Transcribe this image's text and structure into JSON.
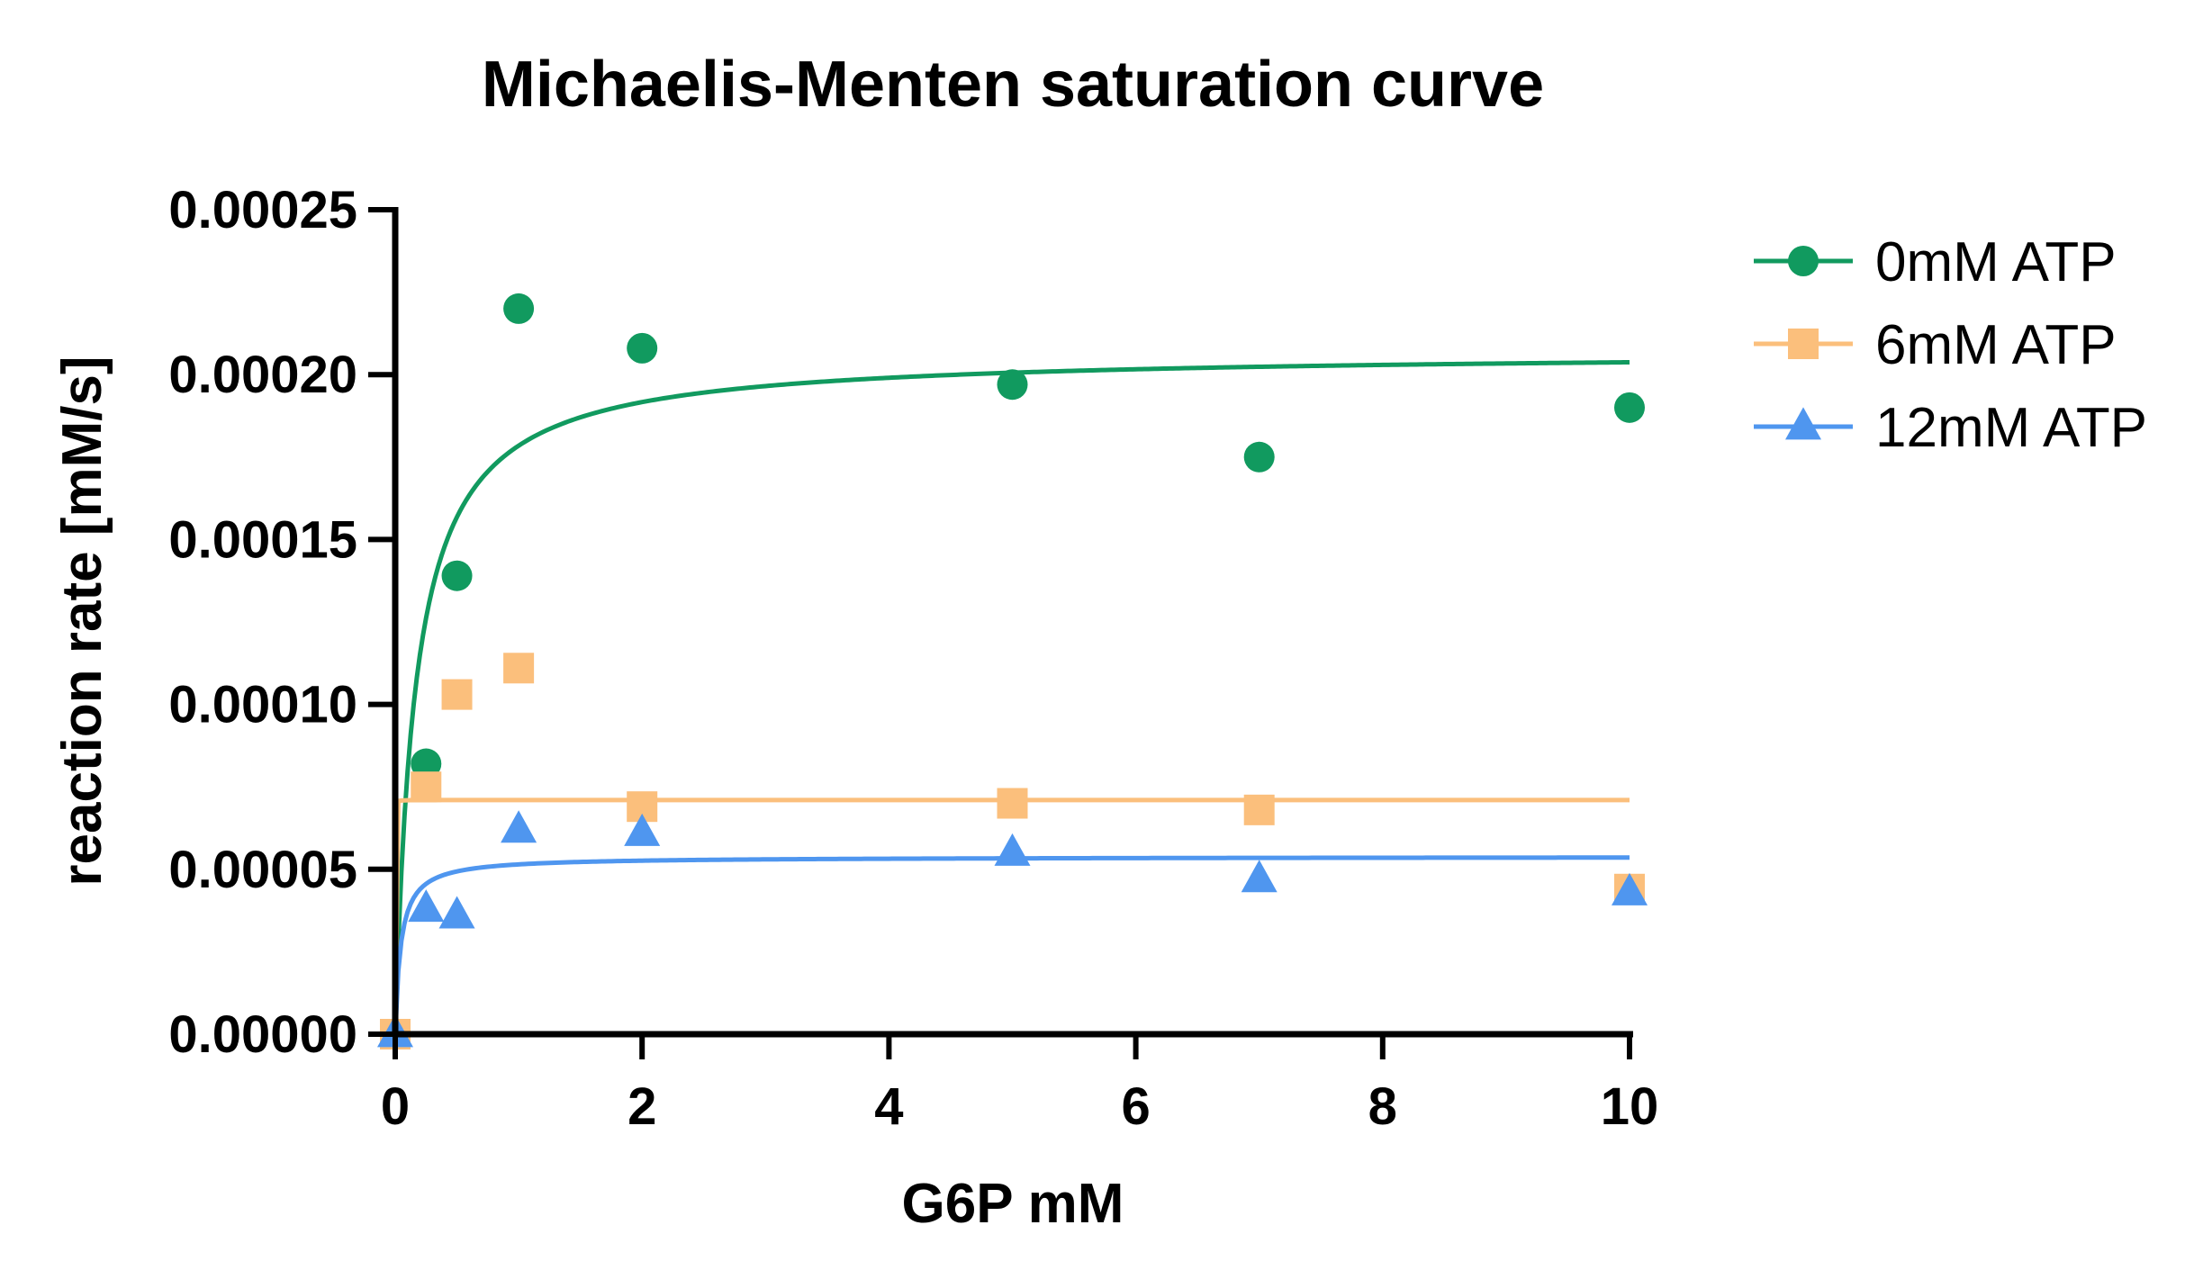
{
  "chart_data": {
    "type": "scatter",
    "title": "Michaelis-Menten saturation curve",
    "xlabel": "G6P mM",
    "ylabel": "reaction rate [mM/s]",
    "xlim": [
      0,
      10
    ],
    "ylim": [
      0,
      0.00025
    ],
    "x_ticks": [
      0,
      2,
      4,
      6,
      8,
      10
    ],
    "x_tick_labels": [
      "0",
      "2",
      "4",
      "6",
      "8",
      "10"
    ],
    "y_ticks": [
      0,
      5e-05,
      0.0001,
      0.00015,
      0.0002,
      0.00025
    ],
    "y_tick_labels": [
      "0.00000",
      "0.00005",
      "0.00010",
      "0.00015",
      "0.00020",
      "0.00025"
    ],
    "grid": false,
    "legend_position": "top-right",
    "series": [
      {
        "name": "0mM ATP",
        "color": "#119a5f",
        "marker": "circle",
        "x": [
          0,
          0.25,
          0.5,
          1,
          2,
          5,
          7,
          10
        ],
        "y": [
          0,
          8.2e-05,
          0.000139,
          0.00022,
          0.000208,
          0.000197,
          0.000175,
          0.00019
        ],
        "fit": {
          "model": "michaelis-menten",
          "vmax": 0.000207,
          "km": 0.16
        }
      },
      {
        "name": "6mM ATP",
        "color": "#fbbf7c",
        "marker": "square",
        "x": [
          0,
          0.25,
          0.5,
          1,
          2,
          5,
          7,
          10
        ],
        "y": [
          0,
          7.5e-05,
          0.000103,
          0.000111,
          6.9e-05,
          7e-05,
          6.8e-05,
          4.4e-05
        ],
        "fit": {
          "model": "michaelis-menten",
          "vmax": 7.1e-05,
          "km": 0.0001
        }
      },
      {
        "name": "12mM ATP",
        "color": "#4f96ef",
        "marker": "triangle",
        "x": [
          0,
          0.25,
          0.5,
          1,
          2,
          5,
          7,
          10
        ],
        "y": [
          0,
          3.8e-05,
          3.6e-05,
          6.2e-05,
          6.1e-05,
          5.5e-05,
          4.7e-05,
          4.3e-05
        ],
        "fit": {
          "model": "michaelis-menten",
          "vmax": 5.38e-05,
          "km": 0.045
        }
      }
    ]
  }
}
